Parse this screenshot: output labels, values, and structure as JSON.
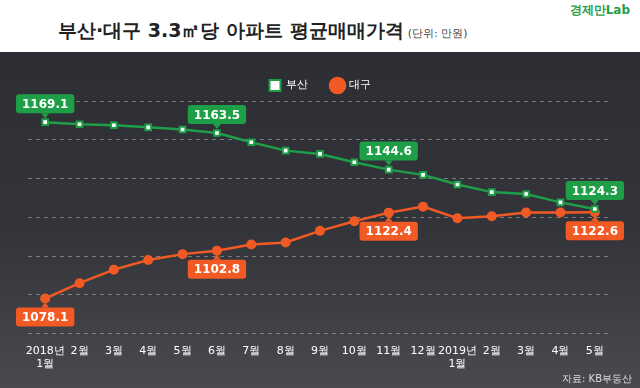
{
  "chart_data": {
    "type": "line",
    "title": "부산·대구 3.3㎡당 아파트 평균매매가격",
    "subtitle": "(단위: 만원)",
    "annotations": [
      "경제만Lab",
      "자료: KB부동산"
    ],
    "categories": [
      "2018년 1월",
      "2월",
      "3월",
      "4월",
      "5월",
      "6월",
      "7월",
      "8월",
      "9월",
      "10월",
      "11월",
      "12월",
      "2019년 1월",
      "2월",
      "3월",
      "4월",
      "5월"
    ],
    "series": [
      {
        "name": "부산",
        "color": "#1f9e48",
        "marker": "square",
        "line_style": "solid",
        "values": [
          1169.1,
          1168.0,
          1167.5,
          1166.4,
          1165.3,
          1163.5,
          1158.7,
          1154.4,
          1152.7,
          1148.4,
          1144.6,
          1141.9,
          1136.9,
          1133.0,
          1132.0,
          1127.7,
          1124.3
        ],
        "value_labels": [
          "1169.1",
          null,
          null,
          null,
          null,
          "1163.5",
          null,
          null,
          null,
          null,
          "1144.6",
          null,
          null,
          null,
          null,
          null,
          "1124.3"
        ]
      },
      {
        "name": "대구",
        "color": "#f15a24",
        "marker": "circle",
        "line_style": "solid",
        "values": [
          1078.1,
          1086.0,
          1093.0,
          1098.0,
          1101.0,
          1102.8,
          1106.0,
          1107.0,
          1113.0,
          1118.0,
          1122.4,
          1125.5,
          1119.5,
          1120.5,
          1122.5,
          1122.5,
          1122.6
        ],
        "value_labels": [
          "1078.1",
          null,
          null,
          null,
          null,
          "1102.8",
          null,
          null,
          null,
          null,
          "1122.4",
          null,
          null,
          null,
          null,
          null,
          "1122.6"
        ]
      }
    ],
    "ylim": [
      1060,
      1180
    ],
    "yticks": [
      1060,
      1080,
      1100,
      1120,
      1140,
      1160,
      1180
    ],
    "grid": true,
    "legend": "top",
    "data_labels": true,
    "tick_labels": "x"
  }
}
